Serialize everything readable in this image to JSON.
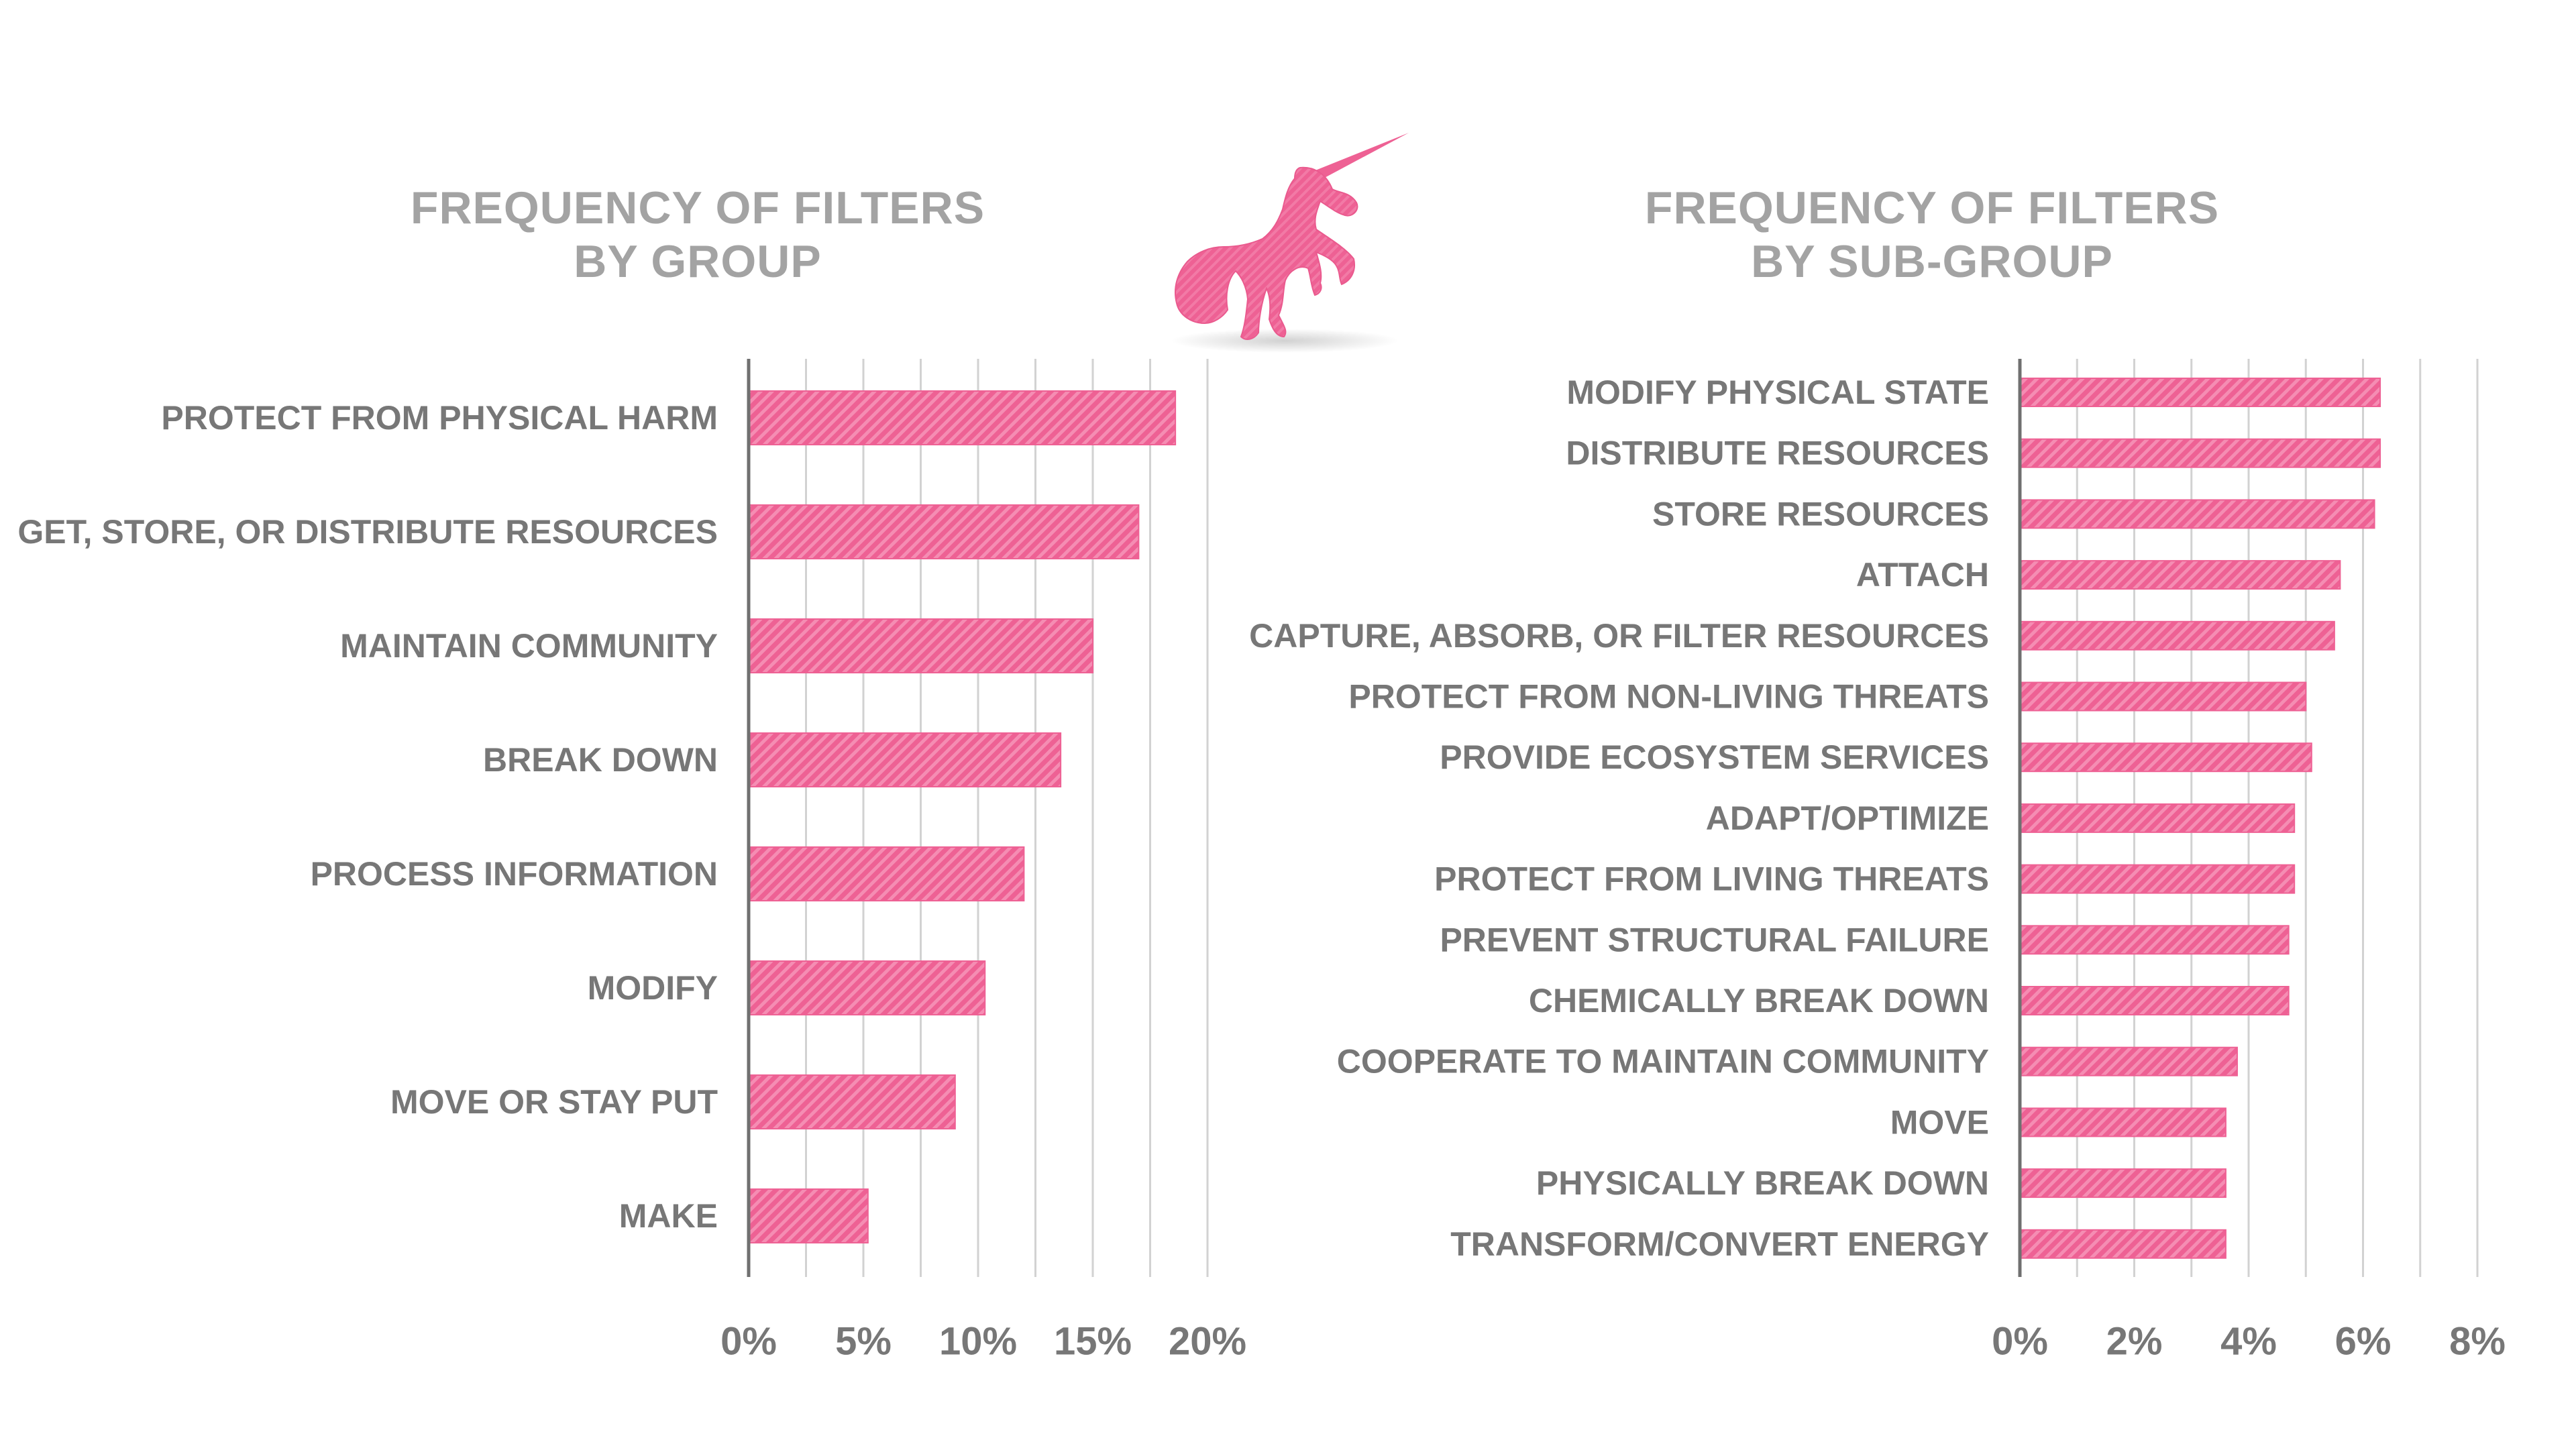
{
  "colors": {
    "bar": "#ee6194",
    "bar_stripe": "#f58db3",
    "text": "#777777",
    "title": "#a3a3a3",
    "axis": "#707070",
    "grid": "#d2d2d2",
    "logo": "#ee6194"
  },
  "logo": {
    "icon": "unicorn-silhouette-icon"
  },
  "chart_data": [
    {
      "type": "bar",
      "orientation": "horizontal",
      "title": [
        "FREQUENCY OF FILTERS",
        "BY GROUP"
      ],
      "categories": [
        "PROTECT FROM PHYSICAL HARM",
        "GET, STORE, OR DISTRIBUTE RESOURCES",
        "MAINTAIN COMMUNITY",
        "BREAK DOWN",
        "PROCESS INFORMATION",
        "MODIFY",
        "MOVE OR STAY PUT",
        "MAKE"
      ],
      "values": [
        18.6,
        17.0,
        15.0,
        13.6,
        12.0,
        10.3,
        9.0,
        5.2
      ],
      "xlim": [
        0,
        20
      ],
      "x_ticks": [
        0,
        5,
        10,
        15,
        20
      ],
      "x_tick_labels": [
        "0%",
        "5%",
        "10%",
        "15%",
        "20%"
      ],
      "minor_grid_step": 2.5,
      "grid": true
    },
    {
      "type": "bar",
      "orientation": "horizontal",
      "title": [
        "FREQUENCY OF FILTERS",
        "BY SUB-GROUP"
      ],
      "categories": [
        "MODIFY PHYSICAL STATE",
        "DISTRIBUTE RESOURCES",
        "STORE RESOURCES",
        "ATTACH",
        "CAPTURE, ABSORB, OR FILTER RESOURCES",
        "PROTECT FROM NON-LIVING THREATS",
        "PROVIDE ECOSYSTEM SERVICES",
        "ADAPT/OPTIMIZE",
        "PROTECT FROM LIVING THREATS",
        "PREVENT STRUCTURAL FAILURE",
        "CHEMICALLY BREAK DOWN",
        "COOPERATE TO MAINTAIN COMMUNITY",
        "MOVE",
        "PHYSICALLY BREAK DOWN",
        "TRANSFORM/CONVERT ENERGY"
      ],
      "values": [
        6.3,
        6.3,
        6.2,
        5.6,
        5.5,
        5.0,
        5.1,
        4.8,
        4.8,
        4.7,
        4.7,
        3.8,
        3.6,
        3.6,
        3.6
      ],
      "xlim": [
        0,
        8
      ],
      "x_ticks": [
        0,
        2,
        4,
        6,
        8
      ],
      "x_tick_labels": [
        "0%",
        "2%",
        "4%",
        "6%",
        "8%"
      ],
      "minor_grid_step": 1,
      "grid": true
    }
  ]
}
